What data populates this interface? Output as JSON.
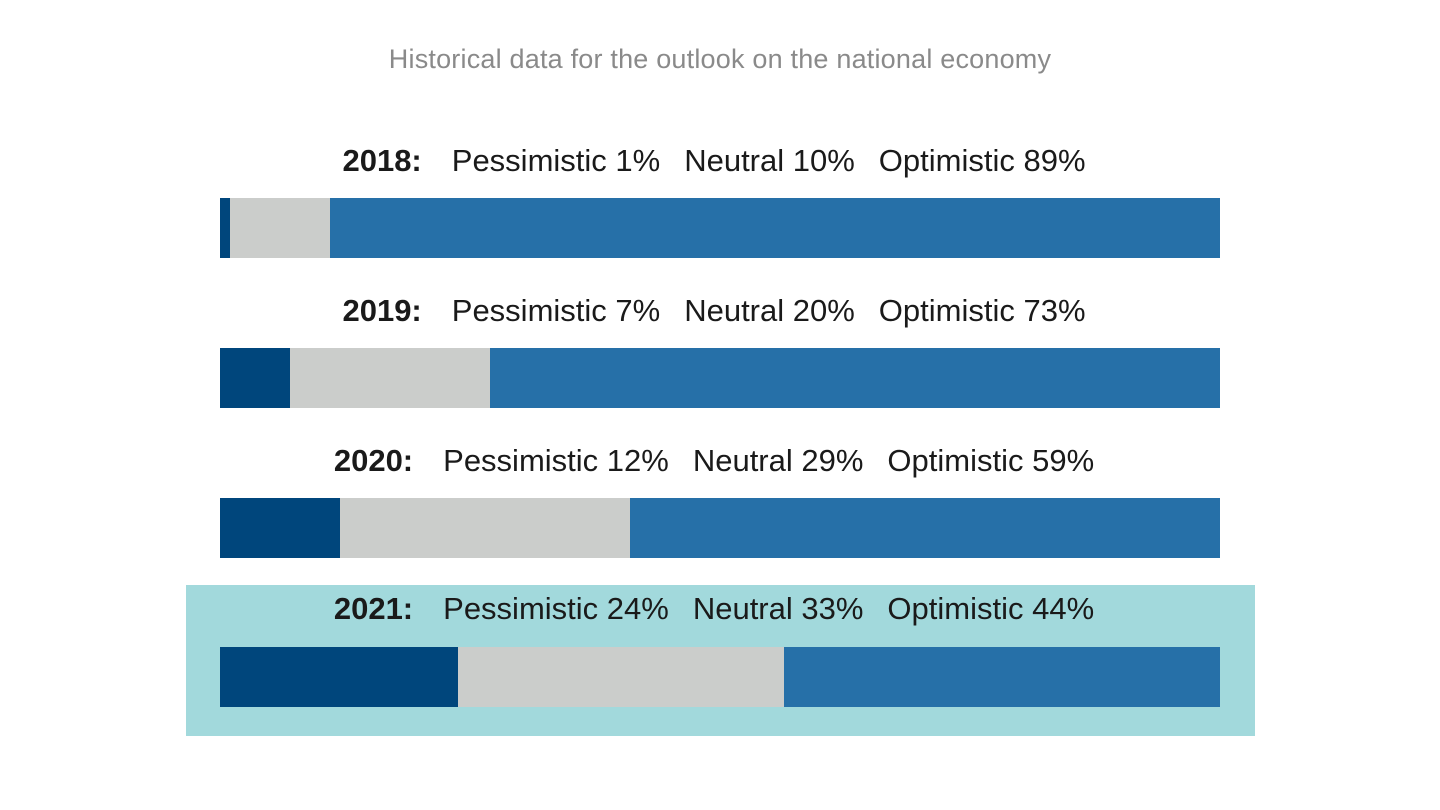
{
  "title": "Historical data for the outlook on the national economy",
  "colors": {
    "pessimistic": "#00467c",
    "neutral": "#cbcdcb",
    "optimistic": "#2670a8",
    "highlight": "#a2d9dc"
  },
  "chart_data": {
    "type": "bar",
    "stacked": true,
    "orientation": "horizontal",
    "title": "Historical data for the outlook on the national economy",
    "categories": [
      "2018",
      "2019",
      "2020",
      "2021"
    ],
    "series": [
      {
        "name": "Pessimistic",
        "values": [
          1,
          7,
          12,
          24
        ]
      },
      {
        "name": "Neutral",
        "values": [
          10,
          20,
          29,
          33
        ]
      },
      {
        "name": "Optimistic",
        "values": [
          89,
          73,
          59,
          44
        ]
      }
    ],
    "highlighted_category": "2021",
    "rows": [
      {
        "year_label": "2018:",
        "pess_label": "Pessimistic 1%",
        "neut_label": "Neutral 10%",
        "opt_label": "Optimistic 89%"
      },
      {
        "year_label": "2019:",
        "pess_label": "Pessimistic 7%",
        "neut_label": "Neutral 20%",
        "opt_label": "Optimistic 73%"
      },
      {
        "year_label": "2020:",
        "pess_label": "Pessimistic 12%",
        "neut_label": "Neutral 29%",
        "opt_label": "Optimistic 59%"
      },
      {
        "year_label": "2021:",
        "pess_label": "Pessimistic 24%",
        "neut_label": "Neutral 33%",
        "opt_label": "Optimistic 44%"
      }
    ]
  }
}
